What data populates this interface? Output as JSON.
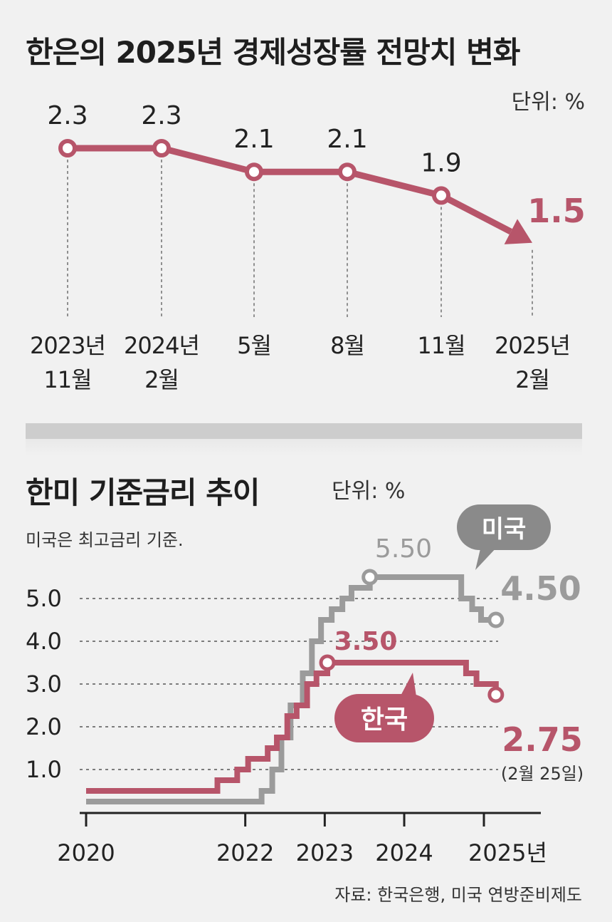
{
  "colors": {
    "korea": "#b7556a",
    "us": "#9b9b9b",
    "text": "#222222",
    "grid": "#777777"
  },
  "top_title": "한은의 2025년 경제성장률 전망치 변화",
  "top_unit": "단위: %",
  "bottom_title": "한미 기준금리 추이",
  "bottom_unit": "단위: %",
  "bottom_note": "미국은 최고금리 기준.",
  "source": "자료: 한국은행, 미국 연방준비제도",
  "chart_data": [
    {
      "type": "line",
      "title": "한은의 2025년 경제성장률 전망치 변화",
      "unit": "단위: %",
      "categories": [
        [
          "2023년",
          "11월"
        ],
        [
          "2024년",
          "2월"
        ],
        [
          "5월"
        ],
        [
          "8월"
        ],
        [
          "11월"
        ],
        [
          "2025년",
          "2월"
        ]
      ],
      "values": [
        2.3,
        2.3,
        2.1,
        2.1,
        1.9,
        1.5
      ],
      "value_labels": [
        "2.3",
        "2.3",
        "2.1",
        "2.1",
        "1.9",
        "1.5"
      ],
      "highlight_last": true
    },
    {
      "type": "line",
      "title": "한미 기준금리 추이",
      "unit": "단위: %",
      "note": "미국은 최고금리 기준.",
      "x_ticks": [
        "2020",
        "2022",
        "2023",
        "2024",
        "2025년"
      ],
      "y_ticks": [
        "1.0",
        "2.0",
        "3.0",
        "4.0",
        "5.0"
      ],
      "ylim": [
        0,
        6
      ],
      "series": [
        {
          "name": "미국",
          "callouts": [
            {
              "value": "5.50"
            },
            {
              "value": "4.50"
            }
          ],
          "steps": [
            [
              "2020-01-01",
              0.25
            ],
            [
              "2022-03-17",
              0.5
            ],
            [
              "2022-05-05",
              1.0
            ],
            [
              "2022-06-16",
              1.75
            ],
            [
              "2022-07-28",
              2.5
            ],
            [
              "2022-09-22",
              3.25
            ],
            [
              "2022-11-03",
              4.0
            ],
            [
              "2022-12-15",
              4.5
            ],
            [
              "2023-02-02",
              4.75
            ],
            [
              "2023-03-23",
              5.0
            ],
            [
              "2023-05-04",
              5.25
            ],
            [
              "2023-07-27",
              5.5
            ],
            [
              "2024-09-19",
              5.0
            ],
            [
              "2024-11-08",
              4.75
            ],
            [
              "2024-12-19",
              4.5
            ],
            [
              "2025-02-25",
              4.5
            ]
          ]
        },
        {
          "name": "한국",
          "callouts": [
            {
              "value": "3.50"
            },
            {
              "value": "2.75",
              "note": "(2월 25일)"
            }
          ],
          "steps": [
            [
              "2020-01-01",
              0.5
            ],
            [
              "2021-08-26",
              0.75
            ],
            [
              "2021-11-25",
              1.0
            ],
            [
              "2022-01-14",
              1.25
            ],
            [
              "2022-04-14",
              1.5
            ],
            [
              "2022-05-26",
              1.75
            ],
            [
              "2022-07-13",
              2.25
            ],
            [
              "2022-08-25",
              2.5
            ],
            [
              "2022-10-12",
              3.0
            ],
            [
              "2022-11-24",
              3.25
            ],
            [
              "2023-01-13",
              3.5
            ],
            [
              "2024-10-11",
              3.25
            ],
            [
              "2024-11-28",
              3.0
            ],
            [
              "2025-02-25",
              2.75
            ]
          ]
        }
      ]
    }
  ]
}
